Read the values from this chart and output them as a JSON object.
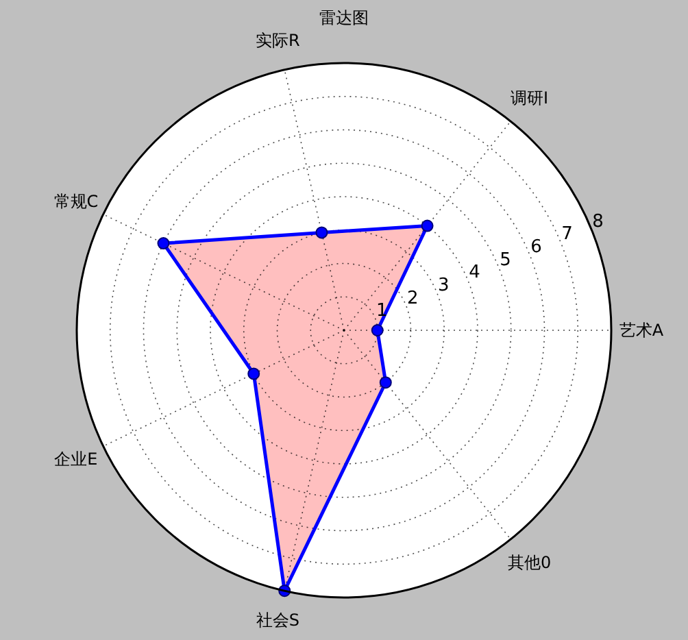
{
  "chart_data": {
    "type": "radar",
    "title": "雷达图",
    "categories": [
      "实际R",
      "调研I",
      "艺术A",
      "其他0",
      "社会S",
      "企业E",
      "常规C"
    ],
    "series": [
      {
        "color": "#0000ff",
        "values": [
          3,
          4,
          1,
          2,
          8,
          3,
          6
        ]
      }
    ],
    "ylim": [
      0,
      8
    ],
    "yticks": [
      1,
      2,
      3,
      4,
      5,
      6,
      7,
      8
    ],
    "grid": true,
    "marker": "circle",
    "line_style": "solid"
  }
}
